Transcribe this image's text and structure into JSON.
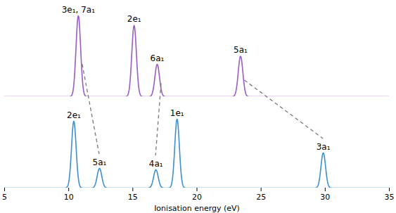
{
  "chart_data": [
    {
      "type": "line",
      "color": "#9a5cc6",
      "xlim": [
        5,
        35
      ],
      "ylim": [
        0,
        100
      ],
      "tick_labels": false,
      "x": [
        10.75,
        15.1,
        16.9,
        23.4
      ],
      "values": [
        100,
        88,
        40,
        50
      ],
      "labels": [
        "3e₁, 7a₁",
        "2e₁",
        "6a₁",
        "5a₁"
      ]
    },
    {
      "type": "line",
      "color": "#3d8fd1",
      "xlim": [
        5,
        35
      ],
      "ylim": [
        0,
        100
      ],
      "tick_labels": "x",
      "xlabel": "Ionisation energy (eV)",
      "xticks": [
        5,
        10,
        15,
        20,
        25,
        30,
        35
      ],
      "x": [
        10.4,
        12.4,
        16.8,
        18.45,
        29.85
      ],
      "values": [
        95,
        28,
        26,
        98,
        50
      ],
      "labels": [
        "2e₁",
        "5a₁",
        "4a₁",
        "1e₁",
        "3a₁"
      ]
    }
  ],
  "correlations": [
    [
      0,
      1
    ],
    [
      2,
      2
    ],
    [
      3,
      4
    ]
  ]
}
